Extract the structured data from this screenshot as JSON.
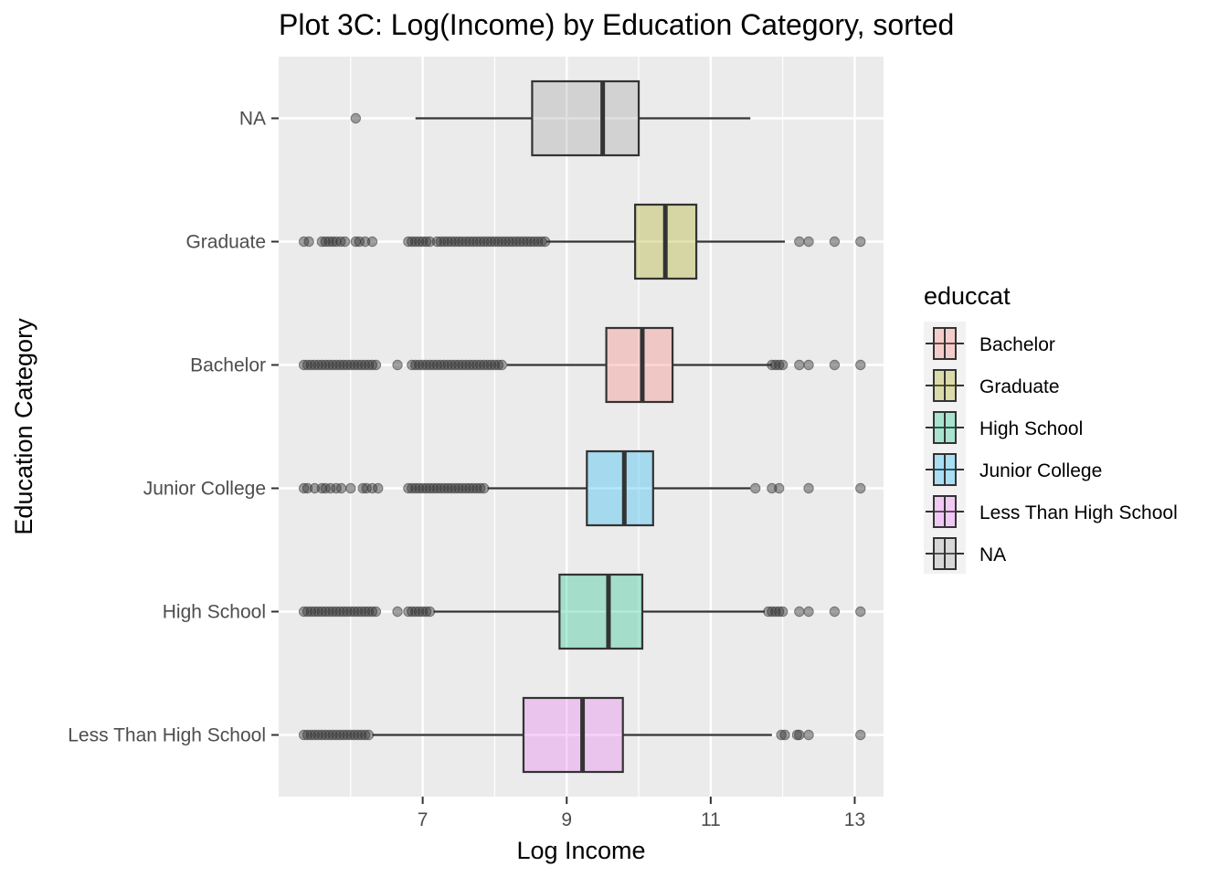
{
  "chart_data": {
    "type": "boxplot",
    "title": "Plot 3C: Log(Income) by Education Category, sorted",
    "xlabel": "Log Income",
    "ylabel": "Education Category",
    "xlim": [
      5.0,
      13.4
    ],
    "xticks": [
      7,
      9,
      11,
      13
    ],
    "grid": true,
    "legend": {
      "title": "educcat",
      "position": "right",
      "entries": [
        "Bachelor",
        "Graduate",
        "High School",
        "Junior College",
        "Less Than High School",
        "NA"
      ]
    },
    "categories": [
      "Less Than High School",
      "High School",
      "Junior College",
      "Bachelor",
      "Graduate",
      "NA"
    ],
    "series": [
      {
        "name": "NA",
        "color": "#999999",
        "q1": 8.52,
        "median": 9.5,
        "q3": 10.0,
        "whisker_low": 6.9,
        "whisker_high": 11.55,
        "outliers": [
          6.07
        ]
      },
      {
        "name": "Graduate",
        "color": "#A3A500",
        "q1": 9.95,
        "median": 10.37,
        "q3": 10.8,
        "whisker_low": 8.72,
        "whisker_high": 12.03,
        "outliers": [
          5.35,
          5.42,
          5.6,
          5.65,
          5.7,
          5.75,
          5.8,
          5.86,
          5.92,
          6.07,
          6.12,
          6.2,
          6.3,
          6.8,
          6.85,
          6.9,
          6.95,
          7.0,
          7.05,
          7.1,
          7.2,
          7.25,
          7.3,
          7.35,
          7.4,
          7.45,
          7.5,
          7.55,
          7.6,
          7.65,
          7.7,
          7.75,
          7.8,
          7.85,
          7.9,
          7.95,
          8.0,
          8.05,
          8.1,
          8.15,
          8.2,
          8.25,
          8.3,
          8.35,
          8.4,
          8.45,
          8.5,
          8.55,
          8.6,
          8.65,
          8.7,
          12.23,
          12.36,
          12.72,
          13.08
        ]
      },
      {
        "name": "Bachelor",
        "color": "#F8766D",
        "q1": 9.55,
        "median": 10.05,
        "q3": 10.47,
        "whisker_low": 8.17,
        "whisker_high": 11.85,
        "outliers": [
          5.35,
          5.4,
          5.45,
          5.5,
          5.55,
          5.6,
          5.65,
          5.7,
          5.75,
          5.8,
          5.85,
          5.9,
          5.95,
          6.0,
          6.05,
          6.1,
          6.15,
          6.2,
          6.25,
          6.3,
          6.35,
          6.65,
          6.85,
          6.9,
          6.95,
          7.0,
          7.05,
          7.1,
          7.15,
          7.2,
          7.25,
          7.3,
          7.35,
          7.4,
          7.45,
          7.5,
          7.55,
          7.6,
          7.65,
          7.7,
          7.75,
          7.8,
          7.85,
          7.9,
          7.95,
          8.0,
          8.05,
          8.1,
          11.85,
          11.9,
          11.95,
          12.0,
          12.23,
          12.36,
          12.72,
          13.08
        ]
      },
      {
        "name": "Junior College",
        "color": "#00B0F6",
        "q1": 9.28,
        "median": 9.8,
        "q3": 10.2,
        "whisker_low": 7.9,
        "whisker_high": 11.55,
        "outliers": [
          5.35,
          5.4,
          5.5,
          5.6,
          5.65,
          5.72,
          5.8,
          5.87,
          6.0,
          6.17,
          6.22,
          6.3,
          6.38,
          6.8,
          6.85,
          6.9,
          6.95,
          7.0,
          7.05,
          7.1,
          7.15,
          7.2,
          7.25,
          7.3,
          7.35,
          7.4,
          7.45,
          7.5,
          7.55,
          7.6,
          7.65,
          7.7,
          7.75,
          7.8,
          7.85,
          11.62,
          11.85,
          11.95,
          12.36,
          13.08
        ]
      },
      {
        "name": "High School",
        "color": "#00BF7D",
        "q1": 8.9,
        "median": 9.58,
        "q3": 10.05,
        "whisker_low": 7.15,
        "whisker_high": 11.75,
        "outliers": [
          5.35,
          5.4,
          5.45,
          5.5,
          5.55,
          5.6,
          5.65,
          5.7,
          5.75,
          5.8,
          5.85,
          5.9,
          5.95,
          6.0,
          6.05,
          6.1,
          6.15,
          6.2,
          6.25,
          6.3,
          6.35,
          6.65,
          6.8,
          6.85,
          6.9,
          6.95,
          7.0,
          7.05,
          7.1,
          11.8,
          11.85,
          11.9,
          11.95,
          12.0,
          12.23,
          12.36,
          12.72,
          13.08
        ]
      },
      {
        "name": "Less Than High School",
        "color": "#E76BF3",
        "q1": 8.4,
        "median": 9.22,
        "q3": 9.78,
        "whisker_low": 6.3,
        "whisker_high": 11.85,
        "outliers": [
          5.35,
          5.4,
          5.45,
          5.5,
          5.55,
          5.6,
          5.65,
          5.7,
          5.75,
          5.8,
          5.85,
          5.9,
          5.95,
          6.0,
          6.05,
          6.1,
          6.15,
          6.2,
          6.25,
          11.98,
          12.03,
          12.2,
          12.23,
          12.36,
          13.08
        ]
      }
    ]
  }
}
